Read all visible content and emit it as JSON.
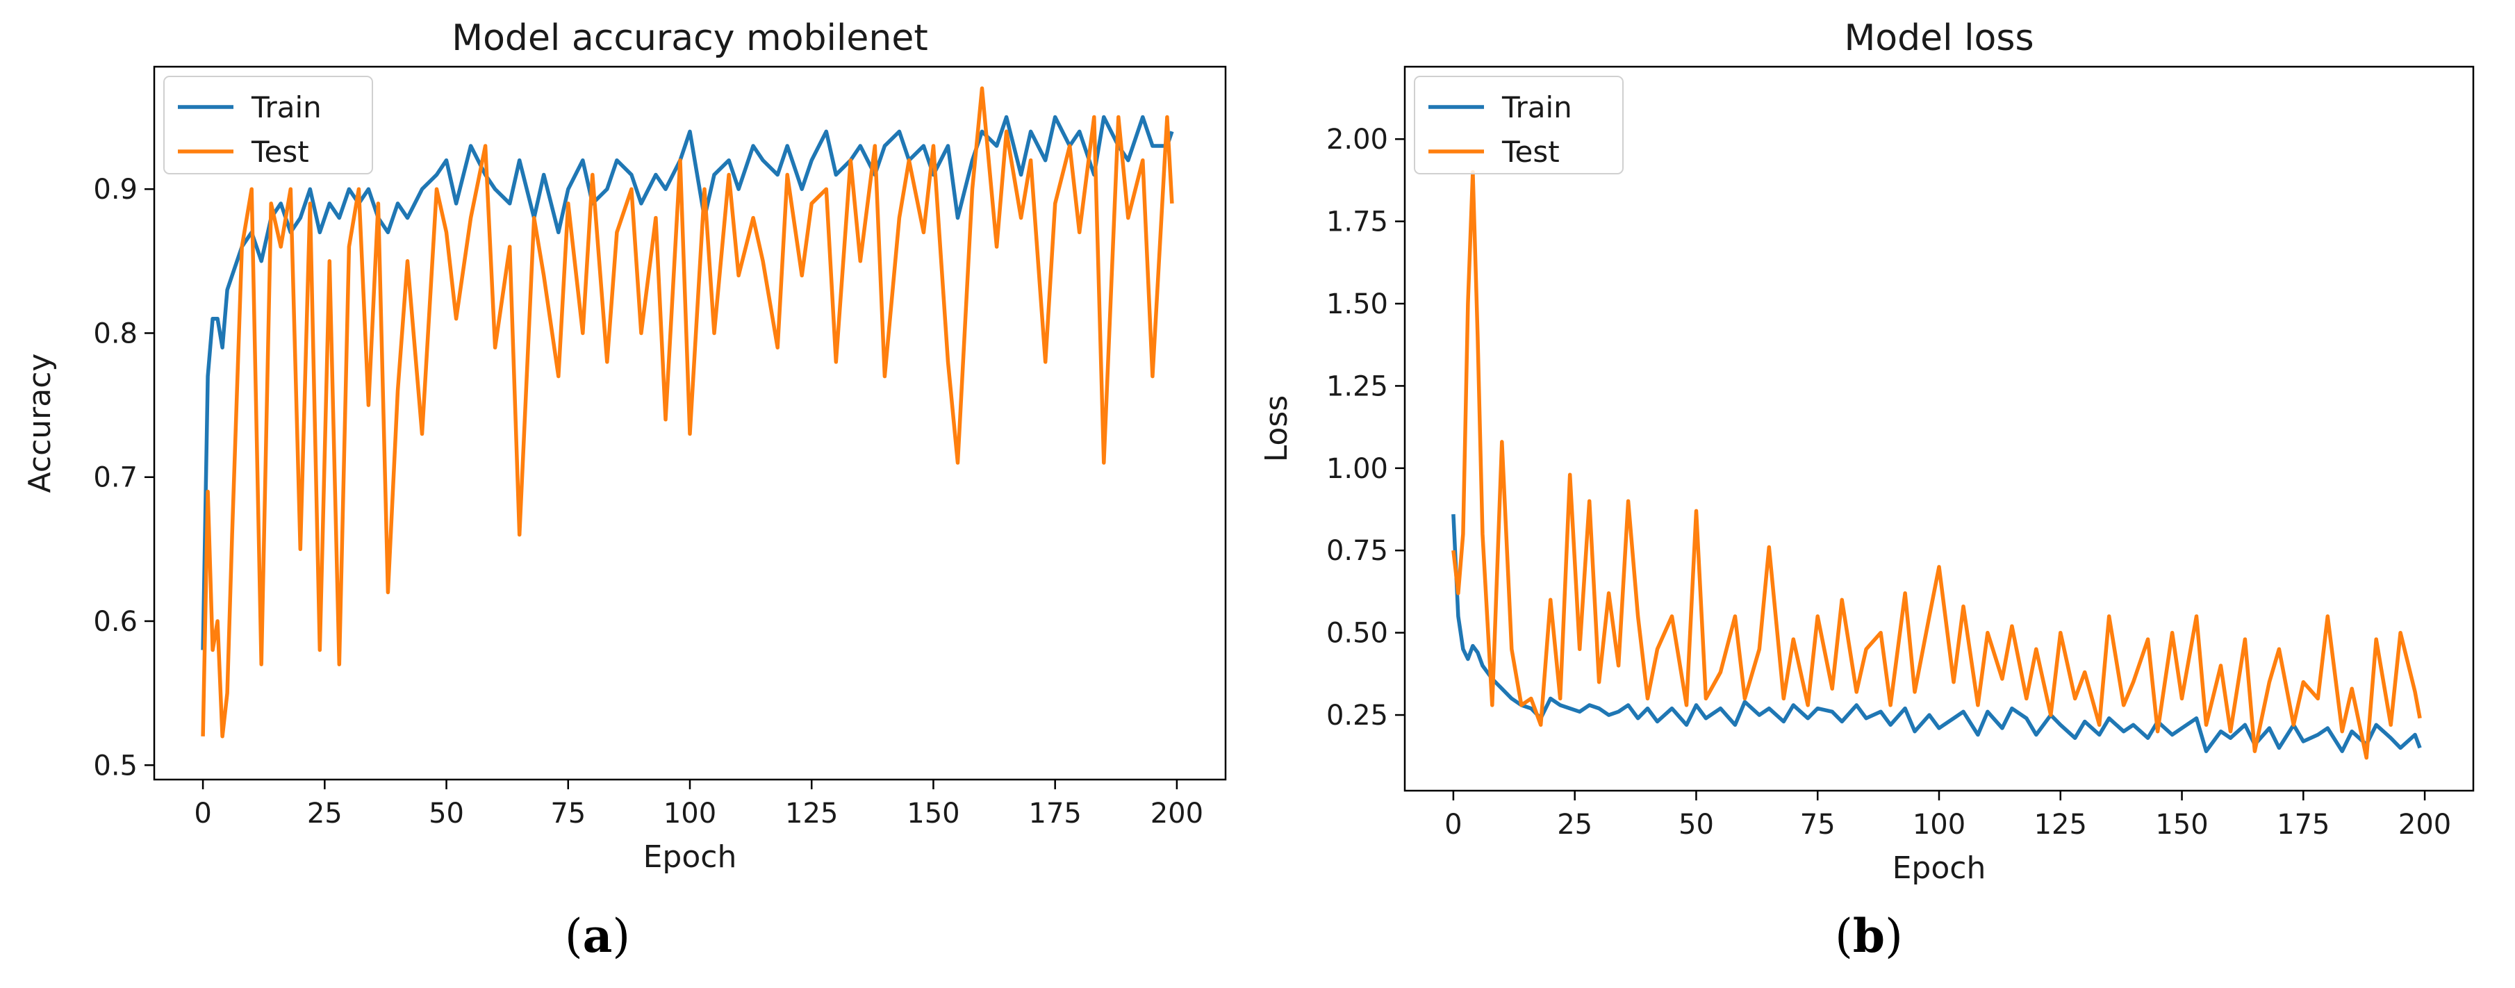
{
  "colors": {
    "train": "#1f77b4",
    "test": "#ff7f0e"
  },
  "chart_data": [
    {
      "type": "line",
      "title": "Model accuracy mobilenet",
      "xlabel": "Epoch",
      "ylabel": "Accuracy",
      "xlim": [
        -10,
        210
      ],
      "ylim": [
        0.49,
        0.985
      ],
      "xticks": [
        0,
        25,
        50,
        75,
        100,
        125,
        150,
        175,
        200
      ],
      "yticks": [
        0.5,
        0.6,
        0.7,
        0.8,
        0.9
      ],
      "ytick_labels": [
        "0.5",
        "0.6",
        "0.7",
        "0.8",
        "0.9"
      ],
      "grid": false,
      "legend": "upper left",
      "x": [
        0,
        1,
        2,
        3,
        4,
        5,
        6,
        8,
        10,
        12,
        14,
        16,
        18,
        20,
        22,
        24,
        26,
        28,
        30,
        32,
        34,
        36,
        38,
        40,
        42,
        45,
        48,
        50,
        52,
        55,
        58,
        60,
        63,
        65,
        68,
        70,
        73,
        75,
        78,
        80,
        83,
        85,
        88,
        90,
        93,
        95,
        98,
        100,
        103,
        105,
        108,
        110,
        113,
        115,
        118,
        120,
        123,
        125,
        128,
        130,
        133,
        135,
        138,
        140,
        143,
        145,
        148,
        150,
        153,
        155,
        158,
        160,
        163,
        165,
        168,
        170,
        173,
        175,
        178,
        180,
        183,
        185,
        188,
        190,
        193,
        195,
        198,
        199
      ],
      "series": [
        {
          "name": "Train",
          "color": "#1f77b4",
          "values": [
            0.58,
            0.77,
            0.81,
            0.81,
            0.79,
            0.83,
            0.84,
            0.86,
            0.87,
            0.85,
            0.88,
            0.89,
            0.87,
            0.88,
            0.9,
            0.87,
            0.89,
            0.88,
            0.9,
            0.89,
            0.9,
            0.88,
            0.87,
            0.89,
            0.88,
            0.9,
            0.91,
            0.92,
            0.89,
            0.93,
            0.91,
            0.9,
            0.89,
            0.92,
            0.88,
            0.91,
            0.87,
            0.9,
            0.92,
            0.89,
            0.9,
            0.92,
            0.91,
            0.89,
            0.91,
            0.9,
            0.92,
            0.94,
            0.88,
            0.91,
            0.92,
            0.9,
            0.93,
            0.92,
            0.91,
            0.93,
            0.9,
            0.92,
            0.94,
            0.91,
            0.92,
            0.93,
            0.91,
            0.93,
            0.94,
            0.92,
            0.93,
            0.91,
            0.93,
            0.88,
            0.92,
            0.94,
            0.93,
            0.95,
            0.91,
            0.94,
            0.92,
            0.95,
            0.93,
            0.94,
            0.91,
            0.95,
            0.93,
            0.92,
            0.95,
            0.93,
            0.93,
            0.94
          ]
        },
        {
          "name": "Test",
          "color": "#ff7f0e",
          "values": [
            0.52,
            0.69,
            0.58,
            0.6,
            0.52,
            0.55,
            0.66,
            0.86,
            0.9,
            0.57,
            0.89,
            0.86,
            0.9,
            0.65,
            0.89,
            0.58,
            0.85,
            0.57,
            0.86,
            0.9,
            0.75,
            0.89,
            0.62,
            0.76,
            0.85,
            0.73,
            0.9,
            0.87,
            0.81,
            0.88,
            0.93,
            0.79,
            0.86,
            0.66,
            0.88,
            0.84,
            0.77,
            0.89,
            0.8,
            0.91,
            0.78,
            0.87,
            0.9,
            0.8,
            0.88,
            0.74,
            0.92,
            0.73,
            0.9,
            0.8,
            0.91,
            0.84,
            0.88,
            0.85,
            0.79,
            0.91,
            0.84,
            0.89,
            0.9,
            0.78,
            0.92,
            0.85,
            0.93,
            0.77,
            0.88,
            0.92,
            0.87,
            0.93,
            0.78,
            0.71,
            0.9,
            0.97,
            0.86,
            0.94,
            0.88,
            0.92,
            0.78,
            0.89,
            0.93,
            0.87,
            0.95,
            0.71,
            0.95,
            0.88,
            0.92,
            0.77,
            0.95,
            0.89
          ]
        }
      ],
      "panel_label": "(a)"
    },
    {
      "type": "line",
      "title": "Model loss",
      "xlabel": "Epoch",
      "ylabel": "Loss",
      "xlim": [
        -10,
        210
      ],
      "ylim": [
        0.02,
        2.22
      ],
      "xticks": [
        0,
        25,
        50,
        75,
        100,
        125,
        150,
        175,
        200
      ],
      "yticks": [
        0.25,
        0.5,
        0.75,
        1.0,
        1.25,
        1.5,
        1.75,
        2.0
      ],
      "ytick_labels": [
        "0.25",
        "0.50",
        "0.75",
        "1.00",
        "1.25",
        "1.50",
        "1.75",
        "2.00"
      ],
      "grid": false,
      "legend": "upper left",
      "x": [
        0,
        1,
        2,
        3,
        4,
        5,
        6,
        8,
        10,
        12,
        14,
        16,
        18,
        20,
        22,
        24,
        26,
        28,
        30,
        32,
        34,
        36,
        38,
        40,
        42,
        45,
        48,
        50,
        52,
        55,
        58,
        60,
        63,
        65,
        68,
        70,
        73,
        75,
        78,
        80,
        83,
        85,
        88,
        90,
        93,
        95,
        98,
        100,
        103,
        105,
        108,
        110,
        113,
        115,
        118,
        120,
        123,
        125,
        128,
        130,
        133,
        135,
        138,
        140,
        143,
        145,
        148,
        150,
        153,
        155,
        158,
        160,
        163,
        165,
        168,
        170,
        173,
        175,
        178,
        180,
        183,
        185,
        188,
        190,
        193,
        195,
        198,
        199
      ],
      "series": [
        {
          "name": "Train",
          "color": "#1f77b4",
          "values": [
            0.86,
            0.55,
            0.45,
            0.42,
            0.46,
            0.44,
            0.4,
            0.36,
            0.33,
            0.3,
            0.28,
            0.27,
            0.24,
            0.3,
            0.28,
            0.27,
            0.26,
            0.28,
            0.27,
            0.25,
            0.26,
            0.28,
            0.24,
            0.27,
            0.23,
            0.27,
            0.22,
            0.28,
            0.24,
            0.27,
            0.22,
            0.29,
            0.25,
            0.27,
            0.23,
            0.28,
            0.24,
            0.27,
            0.26,
            0.23,
            0.28,
            0.24,
            0.26,
            0.22,
            0.27,
            0.2,
            0.25,
            0.21,
            0.24,
            0.26,
            0.19,
            0.26,
            0.21,
            0.27,
            0.24,
            0.19,
            0.25,
            0.22,
            0.18,
            0.23,
            0.19,
            0.24,
            0.2,
            0.22,
            0.18,
            0.23,
            0.19,
            0.21,
            0.24,
            0.14,
            0.2,
            0.18,
            0.22,
            0.16,
            0.21,
            0.15,
            0.22,
            0.17,
            0.19,
            0.21,
            0.14,
            0.2,
            0.16,
            0.22,
            0.18,
            0.15,
            0.19,
            0.15
          ]
        },
        {
          "name": "Test",
          "color": "#ff7f0e",
          "values": [
            0.75,
            0.62,
            0.8,
            1.5,
            1.9,
            1.4,
            0.8,
            0.28,
            1.08,
            0.45,
            0.28,
            0.3,
            0.22,
            0.6,
            0.3,
            0.98,
            0.45,
            0.9,
            0.35,
            0.62,
            0.4,
            0.9,
            0.55,
            0.3,
            0.45,
            0.55,
            0.28,
            0.87,
            0.3,
            0.38,
            0.55,
            0.3,
            0.45,
            0.76,
            0.3,
            0.48,
            0.28,
            0.55,
            0.33,
            0.6,
            0.32,
            0.45,
            0.5,
            0.28,
            0.62,
            0.32,
            0.55,
            0.7,
            0.35,
            0.58,
            0.28,
            0.5,
            0.36,
            0.52,
            0.3,
            0.45,
            0.25,
            0.5,
            0.3,
            0.38,
            0.22,
            0.55,
            0.28,
            0.35,
            0.48,
            0.2,
            0.5,
            0.3,
            0.55,
            0.22,
            0.4,
            0.2,
            0.48,
            0.14,
            0.35,
            0.45,
            0.22,
            0.35,
            0.3,
            0.55,
            0.2,
            0.33,
            0.12,
            0.48,
            0.22,
            0.5,
            0.32,
            0.24
          ]
        }
      ],
      "panel_label": "(b)"
    }
  ]
}
